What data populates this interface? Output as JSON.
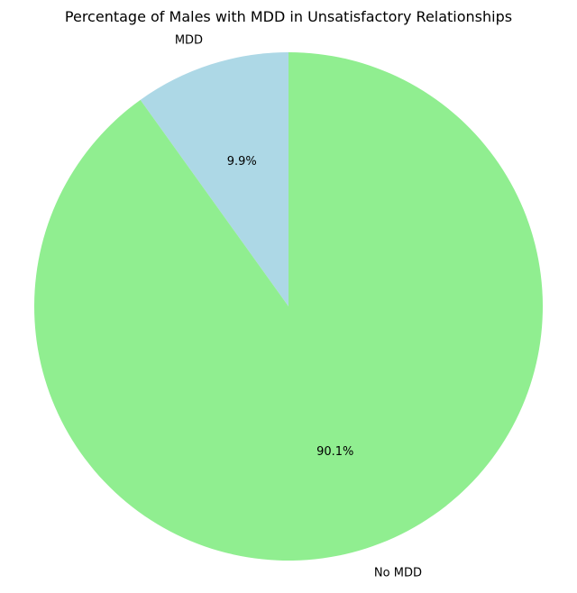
{
  "chart_data": {
    "type": "pie",
    "title": "Percentage of Males with MDD in Unsatisfactory Relationships",
    "slices": [
      {
        "label": "MDD",
        "value": 9.9,
        "pct_label": "9.9%",
        "color": "#add8e6"
      },
      {
        "label": "No MDD",
        "value": 90.1,
        "pct_label": "90.1%",
        "color": "#90ee90"
      }
    ],
    "start_angle_deg": 90,
    "direction": "counterclockwise",
    "legend": "none"
  }
}
